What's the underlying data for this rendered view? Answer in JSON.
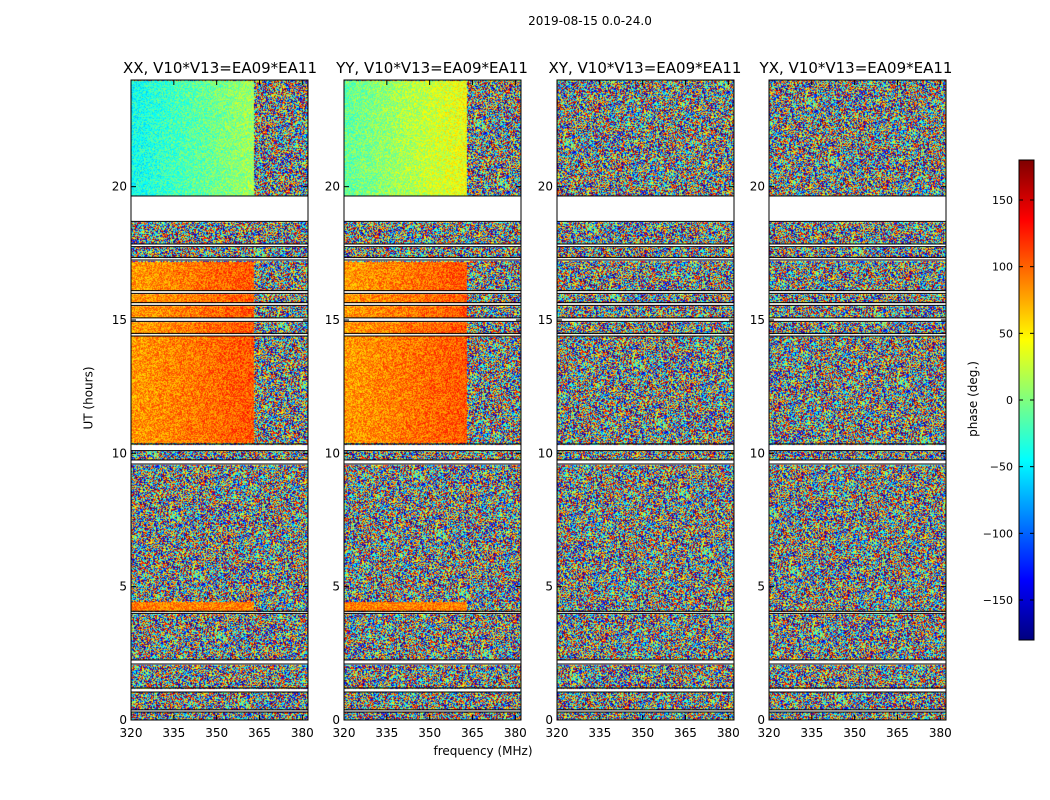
{
  "chart_data": {
    "type": "heatmap",
    "suptitle": "2019-08-15 0.0-24.0",
    "xlabel": "frequency (MHz)",
    "ylabel": "UT (hours)",
    "xlim": [
      320,
      382
    ],
    "ylim": [
      0,
      24
    ],
    "xticks": [
      "320",
      "335",
      "350",
      "365",
      "380"
    ],
    "xtick_values": [
      320,
      335,
      350,
      365,
      380
    ],
    "yticks": [
      "0",
      "5",
      "10",
      "15",
      "20"
    ],
    "ytick_values": [
      0,
      5,
      10,
      15,
      20
    ],
    "colorbar": {
      "label": "phase (deg.)",
      "range": [
        -180,
        180
      ],
      "ticks": [
        "150",
        "100",
        "50",
        "0",
        "−50",
        "−100",
        "−150"
      ],
      "tick_values": [
        150,
        100,
        50,
        0,
        -50,
        -100,
        -150
      ],
      "colormap": "jet",
      "colors": [
        "#00007f",
        "#0000ff",
        "#007fff",
        "#00ffff",
        "#7fff7f",
        "#ffff00",
        "#ff7f00",
        "#ff0000",
        "#7f0000"
      ]
    },
    "panels": [
      {
        "title": "XX, V10*V13=EA09*EA11",
        "pol": "XX",
        "coherent": true
      },
      {
        "title": "YY, V10*V13=EA09*EA11",
        "pol": "YY",
        "coherent": true
      },
      {
        "title": "XY, V10*V13=EA09*EA11",
        "pol": "XY",
        "coherent": false
      },
      {
        "title": "YX, V10*V13=EA09*EA11",
        "pol": "YX",
        "coherent": false
      }
    ],
    "flagged_ut_ranges": [
      [
        18.7,
        19.65
      ],
      [
        17.75,
        17.85
      ],
      [
        17.25,
        17.35
      ],
      [
        16.0,
        16.1
      ],
      [
        15.55,
        15.65
      ],
      [
        14.95,
        15.08
      ],
      [
        14.4,
        14.5
      ],
      [
        10.1,
        10.35
      ],
      [
        9.6,
        9.75
      ],
      [
        4.0,
        4.08
      ],
      [
        2.1,
        2.25
      ],
      [
        1.05,
        1.2
      ],
      [
        0.3,
        0.38
      ]
    ],
    "data_ut_ranges": [
      [
        0,
        9.6
      ],
      [
        9.75,
        10.1
      ],
      [
        10.35,
        17.25
      ],
      [
        17.35,
        18.7
      ],
      [
        19.65,
        24
      ]
    ]
  }
}
